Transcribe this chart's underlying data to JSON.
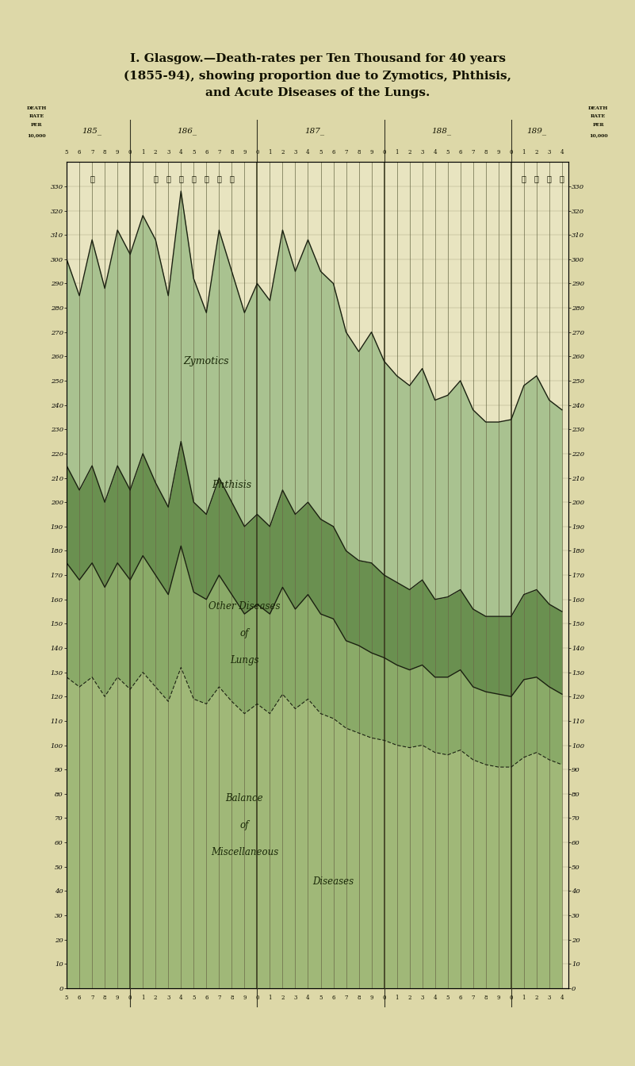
{
  "title_line1": "I. Glasgow.—Death-rates per Ten Thousand for 40 years",
  "title_line2": "(1855-94), showing proportion due to Zymotics, Phthisis,",
  "title_line3": "and Acute Diseases of the Lungs.",
  "bg_color": "#ddd8a8",
  "chart_bg": "#e8e4c0",
  "years": [
    1855,
    1856,
    1857,
    1858,
    1859,
    1860,
    1861,
    1862,
    1863,
    1864,
    1865,
    1866,
    1867,
    1868,
    1869,
    1870,
    1871,
    1872,
    1873,
    1874,
    1875,
    1876,
    1877,
    1878,
    1879,
    1880,
    1881,
    1882,
    1883,
    1884,
    1885,
    1886,
    1887,
    1888,
    1889,
    1890,
    1891,
    1892,
    1893,
    1894
  ],
  "total": [
    300,
    285,
    308,
    288,
    312,
    302,
    318,
    308,
    285,
    328,
    292,
    278,
    312,
    295,
    278,
    290,
    283,
    312,
    295,
    308,
    295,
    290,
    270,
    262,
    270,
    258,
    252,
    248,
    255,
    242,
    244,
    250,
    238,
    233,
    233,
    234,
    248,
    252,
    242,
    238
  ],
  "phthisis_top": [
    215,
    205,
    215,
    200,
    215,
    205,
    220,
    208,
    198,
    225,
    200,
    195,
    210,
    200,
    190,
    195,
    190,
    205,
    195,
    200,
    193,
    190,
    180,
    176,
    175,
    170,
    167,
    164,
    168,
    160,
    161,
    164,
    156,
    153,
    153,
    153,
    162,
    164,
    158,
    155
  ],
  "lungs_top": [
    175,
    168,
    175,
    165,
    175,
    168,
    178,
    170,
    162,
    182,
    163,
    160,
    170,
    162,
    154,
    158,
    154,
    165,
    156,
    162,
    154,
    152,
    143,
    141,
    138,
    136,
    133,
    131,
    133,
    128,
    128,
    131,
    124,
    122,
    121,
    120,
    127,
    128,
    124,
    121
  ],
  "misc_top": [
    128,
    124,
    128,
    120,
    128,
    123,
    130,
    124,
    118,
    132,
    119,
    117,
    124,
    118,
    113,
    117,
    113,
    121,
    115,
    119,
    113,
    111,
    107,
    105,
    103,
    102,
    100,
    99,
    100,
    97,
    96,
    98,
    94,
    92,
    91,
    91,
    95,
    97,
    94,
    92
  ],
  "color_misc_fill": "#a8c890",
  "color_lungs_fill": "#88a870",
  "color_phthisis_fill": "#6a8c58",
  "color_zymotics_fill": "#889870",
  "color_outline": "#1a2010",
  "ylim": [
    0,
    340
  ],
  "yticks": [
    0,
    10,
    20,
    30,
    40,
    50,
    60,
    70,
    80,
    90,
    100,
    110,
    120,
    130,
    140,
    150,
    160,
    170,
    180,
    190,
    200,
    210,
    220,
    230,
    240,
    250,
    260,
    270,
    280,
    290,
    300,
    310,
    320,
    330
  ],
  "markers": [
    [
      1857,
      "①"
    ],
    [
      1862,
      "②"
    ],
    [
      1863,
      "③"
    ],
    [
      1864,
      "④"
    ],
    [
      1865,
      "⑤"
    ],
    [
      1866,
      "⑥"
    ],
    [
      1867,
      "⑦"
    ],
    [
      1868,
      "⑧"
    ],
    [
      1891,
      "⑨"
    ],
    [
      1892,
      "⑩"
    ],
    [
      1893,
      "⒪"
    ],
    [
      1894,
      "⒫"
    ]
  ],
  "header_bg": "#d8d4a0",
  "header_sub_bg": "#ccc8a0",
  "left_label_bg": "#d0cc98"
}
